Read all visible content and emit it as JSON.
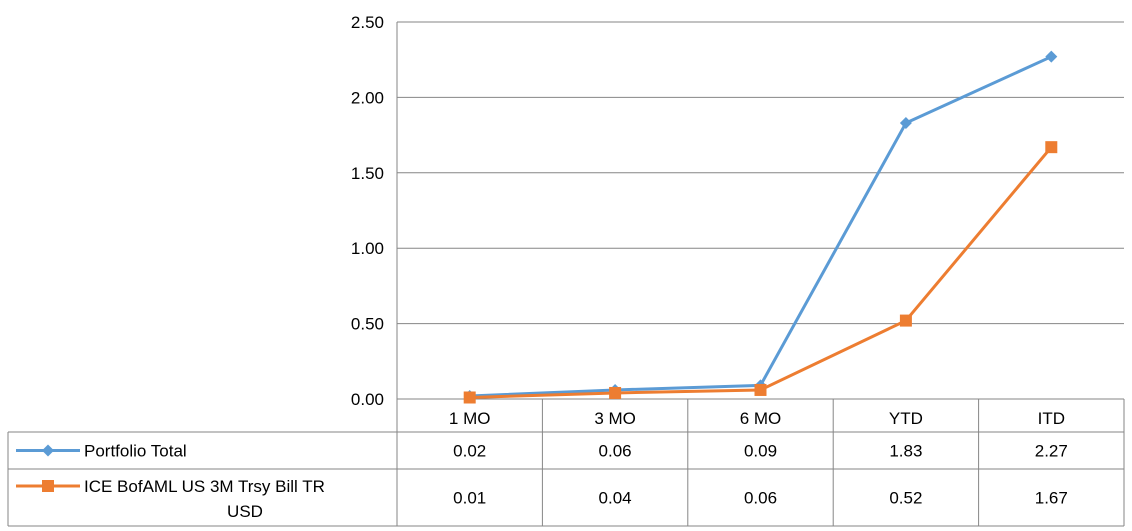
{
  "chart_data": {
    "type": "line",
    "categories": [
      "1 MO",
      "3 MO",
      "6 MO",
      "YTD",
      "ITD"
    ],
    "ylim": [
      0,
      2.5
    ],
    "yticks": [
      "0.00",
      "0.50",
      "1.00",
      "1.50",
      "2.00",
      "2.50"
    ],
    "grid": true,
    "legend": "data-table",
    "series": [
      {
        "name": "Portfolio Total",
        "label_lines": [
          "Portfolio Total"
        ],
        "values": [
          0.02,
          0.06,
          0.09,
          1.83,
          2.27
        ],
        "display": [
          "0.02",
          "0.06",
          "0.09",
          "1.83",
          "2.27"
        ],
        "color": "#5B9BD5",
        "marker": "diamond"
      },
      {
        "name": "ICE BofAML US 3M Trsy Bill TR USD",
        "label_lines": [
          "ICE BofAML US 3M Trsy Bill TR",
          "USD"
        ],
        "values": [
          0.01,
          0.04,
          0.06,
          0.52,
          1.67
        ],
        "display": [
          "0.01",
          "0.04",
          "0.06",
          "0.52",
          "1.67"
        ],
        "color": "#ED7D31",
        "marker": "square"
      }
    ]
  }
}
